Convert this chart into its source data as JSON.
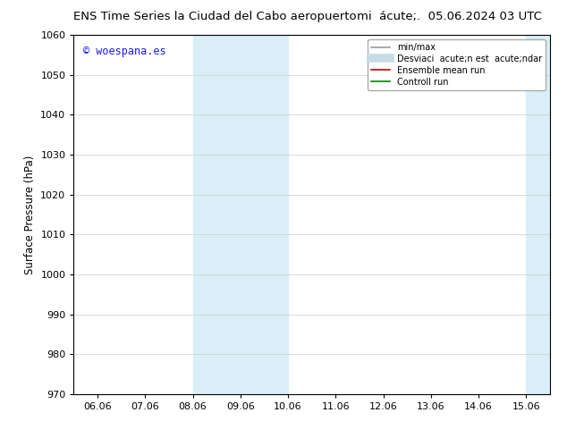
{
  "title_left": "ENS Time Series la Ciudad del Cabo aeropuerto",
  "title_right": "mi  acute;.  05.06.2024 03 UTC",
  "ylabel": "Surface Pressure (hPa)",
  "ylim": [
    970,
    1060
  ],
  "yticks": [
    970,
    980,
    990,
    1000,
    1010,
    1020,
    1030,
    1040,
    1050,
    1060
  ],
  "xtick_labels": [
    "06.06",
    "07.06",
    "08.06",
    "09.06",
    "10.06",
    "11.06",
    "12.06",
    "13.06",
    "14.06",
    "15.06"
  ],
  "xtick_positions": [
    0,
    1,
    2,
    3,
    4,
    5,
    6,
    7,
    8,
    9
  ],
  "xlim": [
    -0.5,
    9.5
  ],
  "shaded_bands": [
    {
      "xmin": 2.0,
      "xmax": 4.0,
      "color": "#daeef8"
    },
    {
      "xmin": 9.0,
      "xmax": 9.5,
      "color": "#daeef8"
    }
  ],
  "watermark_text": "© woespana.es",
  "watermark_color": "#1a1aff",
  "legend_items": [
    {
      "label": "min/max",
      "color": "#999999",
      "lw": 1.2,
      "linestyle": "-"
    },
    {
      "label": "Desviaci  acute;n est  acute;ndar",
      "color": "#c8dce8",
      "lw": 7,
      "linestyle": "-"
    },
    {
      "label": "Ensemble mean run",
      "color": "#cc0000",
      "lw": 1.2,
      "linestyle": "-"
    },
    {
      "label": "Controll run",
      "color": "#008800",
      "lw": 1.2,
      "linestyle": "-"
    }
  ],
  "bg_color": "#ffffff",
  "grid_color": "#cccccc",
  "figure_width": 6.34,
  "figure_height": 4.9,
  "dpi": 100
}
